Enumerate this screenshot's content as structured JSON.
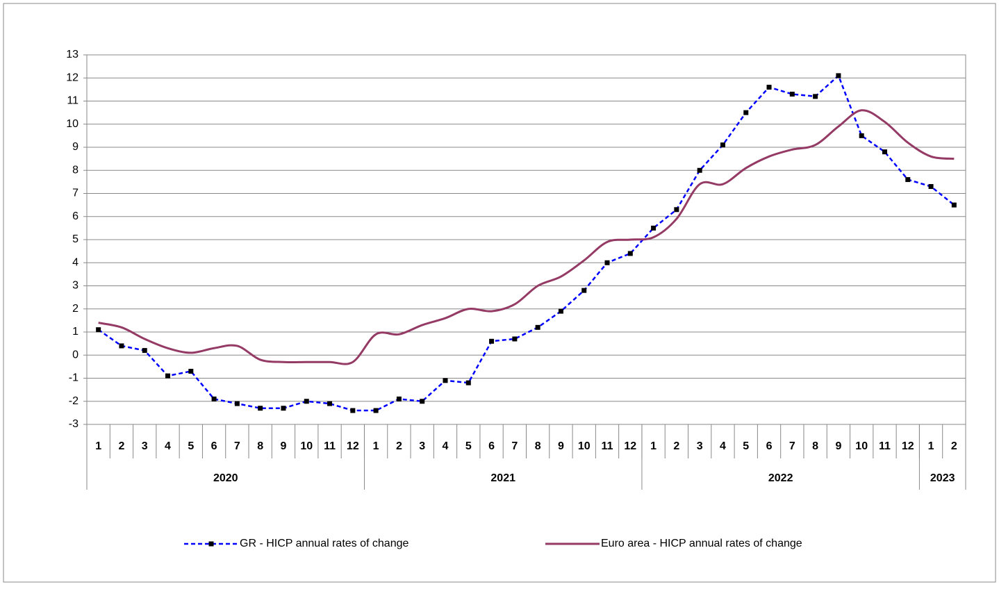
{
  "chart_data": {
    "type": "line",
    "category_groups": [
      {
        "label": "2020",
        "categories": [
          "1",
          "2",
          "3",
          "4",
          "5",
          "6",
          "7",
          "8",
          "9",
          "10",
          "11",
          "12"
        ]
      },
      {
        "label": "2021",
        "categories": [
          "1",
          "2",
          "3",
          "4",
          "5",
          "6",
          "7",
          "8",
          "9",
          "10",
          "11",
          "12"
        ]
      },
      {
        "label": "2022",
        "categories": [
          "1",
          "2",
          "3",
          "4",
          "5",
          "6",
          "7",
          "8",
          "9",
          "10",
          "11",
          "12"
        ]
      },
      {
        "label": "2023",
        "categories": [
          "1",
          "2"
        ]
      }
    ],
    "series": [
      {
        "name": "GR - HICP annual rates of change",
        "color": "#0000ff",
        "style": "dashed",
        "marker": "square",
        "values": [
          1.1,
          0.4,
          0.2,
          -0.9,
          -0.7,
          -1.9,
          -2.1,
          -2.3,
          -2.3,
          -2.0,
          -2.1,
          -2.4,
          -2.4,
          -1.9,
          -2.0,
          -1.1,
          -1.2,
          0.6,
          0.7,
          1.2,
          1.9,
          2.8,
          4.0,
          4.4,
          5.5,
          6.3,
          8.0,
          9.1,
          10.5,
          11.6,
          11.3,
          11.2,
          12.1,
          9.5,
          8.8,
          7.6,
          7.3,
          6.5
        ]
      },
      {
        "name": "Euro area - HICP annual rates of change",
        "color": "#943a64",
        "style": "smooth",
        "marker": "none",
        "values": [
          1.4,
          1.2,
          0.7,
          0.3,
          0.1,
          0.3,
          0.4,
          -0.2,
          -0.3,
          -0.3,
          -0.3,
          -0.3,
          0.9,
          0.9,
          1.3,
          1.6,
          2.0,
          1.9,
          2.2,
          3.0,
          3.4,
          4.1,
          4.9,
          5.0,
          5.1,
          5.9,
          7.4,
          7.4,
          8.1,
          8.6,
          8.9,
          9.1,
          9.9,
          10.6,
          10.1,
          9.2,
          8.6,
          8.5
        ]
      }
    ],
    "ylim": [
      -3,
      13
    ],
    "yticks": [
      -3,
      -2,
      -1,
      0,
      1,
      2,
      3,
      4,
      5,
      6,
      7,
      8,
      9,
      10,
      11,
      12,
      13
    ],
    "grid": true,
    "legend": "bottom"
  }
}
